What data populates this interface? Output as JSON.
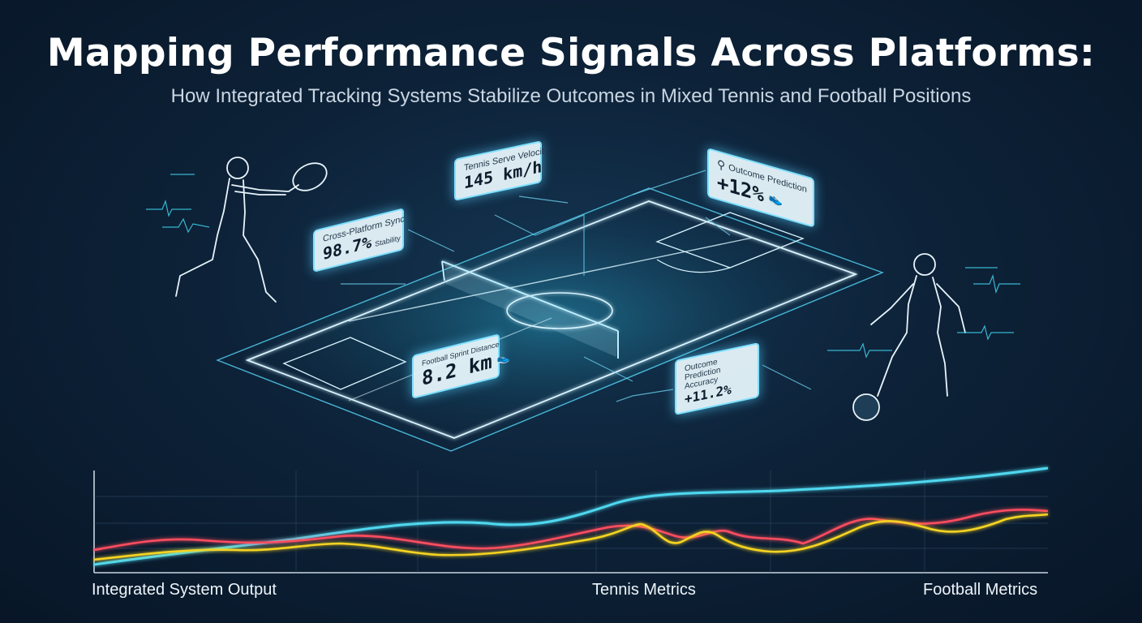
{
  "header": {
    "title": "Mapping Performance Signals Across Platforms:",
    "subtitle": "How Integrated Tracking Systems Stabilize Outcomes in Mixed Tennis and Football Positions"
  },
  "cards": {
    "serve_velocity": {
      "label": "Tennis Serve Velocity",
      "value": "145 km/h"
    },
    "outcome_top": {
      "label": "Outcome Prediction",
      "value": "+12%"
    },
    "cross_platform": {
      "label": "Cross-Platform Sync",
      "value": "98.7%",
      "sub": "Stability"
    },
    "sprint_distance": {
      "label": "Football Sprint Distance",
      "value": "8.2 km"
    },
    "outcome_bottom": {
      "label": "Outcome Prediction Accuracy",
      "value": "+11.2%"
    }
  },
  "chart_labels": {
    "left": "Integrated System Output",
    "middle": "Tennis Metrics",
    "right": "Football Metrics"
  },
  "colors": {
    "integrated": "#4fd8ef",
    "tennis": "#ff4d5e",
    "football": "#f5d321",
    "accent": "#7fe0ff"
  },
  "icons": [
    "tennis-racket-icon",
    "football-boot-icon"
  ]
}
